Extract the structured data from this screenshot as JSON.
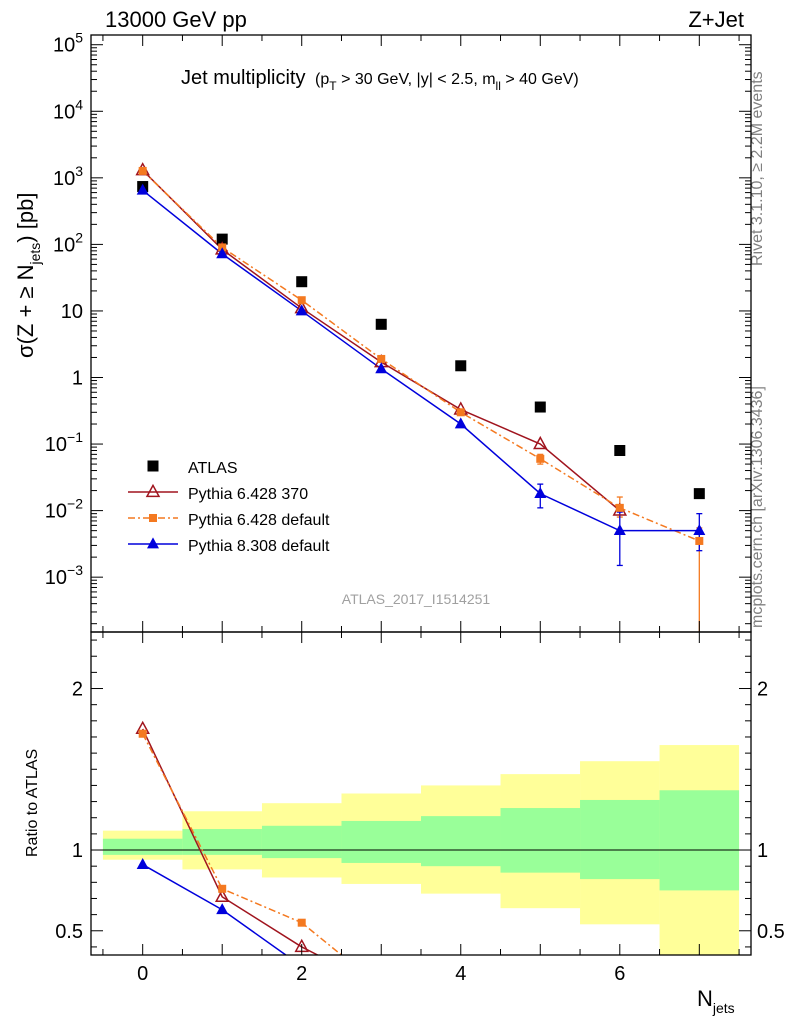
{
  "header": {
    "left": "13000 GeV pp",
    "right": "Z+Jet"
  },
  "side_labels": {
    "rivet": "Rivet 3.1.10, ≥ 2.2M events",
    "mcplots": "mcplots.cern.ch [arXiv:1306.3436]"
  },
  "chart_data": [
    {
      "type": "scatter",
      "title": "Jet multiplicity",
      "title_cuts": {
        "pt_p": "(p",
        "pt_sub": "T",
        "pt_rest": " > 30 GeV, |y| < 2.5, m",
        "m_sub": "ll",
        "m_rest": " > 40 GeV)"
      },
      "ylabel": {
        "a": "σ(Z + ≥ N",
        "sub": "jets",
        "b": ") [pb]"
      },
      "xlabel": {
        "main": "N",
        "sub": "jets"
      },
      "x_ticks": [
        "0",
        "2",
        "4",
        "6"
      ],
      "y_log": true,
      "xlim": [
        -0.65,
        7.65
      ],
      "ylim": [
        0.00015,
        140000
      ],
      "y_ticks": [
        {
          "v": 100000,
          "m": "10",
          "e": "5"
        },
        {
          "v": 10000,
          "m": "10",
          "e": "4"
        },
        {
          "v": 1000,
          "m": "10",
          "e": "3"
        },
        {
          "v": 100,
          "m": "10",
          "e": "2"
        },
        {
          "v": 10,
          "m": "10",
          "e": ""
        },
        {
          "v": 1,
          "m": "1",
          "e": ""
        },
        {
          "v": 0.1,
          "m": "10",
          "e": "−1"
        },
        {
          "v": 0.01,
          "m": "10",
          "e": "−2"
        },
        {
          "v": 0.001,
          "m": "10",
          "e": "−3"
        }
      ],
      "watermark": "ATLAS_2017_I1514251",
      "legend_position": "lower-left",
      "series": [
        {
          "name": "ATLAS",
          "color": "#000000",
          "marker": "square",
          "x": [
            0,
            1,
            2,
            3,
            4,
            5,
            6,
            7
          ],
          "y": [
            740,
            120,
            27.5,
            6.3,
            1.5,
            0.36,
            0.08,
            0.018
          ]
        },
        {
          "name": "Pythia 6.428 370",
          "color": "#a0141e",
          "marker": "open-triangle",
          "line": "solid",
          "x": [
            0,
            1,
            2,
            3,
            4,
            5,
            6
          ],
          "y": [
            1300,
            84,
            11,
            1.7,
            0.33,
            0.1,
            0.01
          ]
        },
        {
          "name": "Pythia 6.428 default",
          "color": "#f47920",
          "marker": "square",
          "line": "dashdot",
          "x": [
            0,
            1,
            2,
            3,
            4,
            5,
            6,
            7
          ],
          "y": [
            1270,
            90,
            14.5,
            1.9,
            0.3,
            0.06,
            0.011,
            0.0035
          ],
          "err_lo": [
            0,
            0,
            0,
            0,
            0,
            0.01,
            0.003,
            0.0034
          ],
          "err_hi": [
            0,
            0,
            0,
            0,
            0,
            0.01,
            0.005,
            0.002
          ]
        },
        {
          "name": "Pythia 8.308 default",
          "color": "#0000dc",
          "marker": "triangle",
          "line": "solid",
          "x": [
            0,
            1,
            2,
            3,
            4,
            5,
            6,
            7
          ],
          "y": [
            650,
            72,
            10,
            1.35,
            0.2,
            0.018,
            0.005,
            0.005
          ],
          "err_lo": [
            0,
            0,
            0,
            0,
            0,
            0.007,
            0.0035,
            0.0025
          ],
          "err_hi": [
            0,
            0,
            0,
            0,
            0,
            0.007,
            0.0045,
            0.004
          ]
        }
      ]
    },
    {
      "type": "line",
      "ylabel": "Ratio to ATLAS",
      "ylim": [
        0.35,
        2.35
      ],
      "y_ticks": [
        "0.5",
        "1",
        "2"
      ],
      "y_tick_values": [
        0.5,
        1,
        2
      ],
      "band_colors": {
        "outer": "#ffff99",
        "inner": "#99ff99"
      },
      "bands": [
        {
          "x0": -0.5,
          "x1": 0.5,
          "outer": [
            0.94,
            1.12
          ],
          "inner": [
            0.97,
            1.07
          ]
        },
        {
          "x0": 0.5,
          "x1": 1.5,
          "outer": [
            0.88,
            1.24
          ],
          "inner": [
            0.97,
            1.13
          ]
        },
        {
          "x0": 1.5,
          "x1": 2.5,
          "outer": [
            0.83,
            1.29
          ],
          "inner": [
            0.95,
            1.15
          ]
        },
        {
          "x0": 2.5,
          "x1": 3.5,
          "outer": [
            0.79,
            1.35
          ],
          "inner": [
            0.92,
            1.18
          ]
        },
        {
          "x0": 3.5,
          "x1": 4.5,
          "outer": [
            0.73,
            1.4
          ],
          "inner": [
            0.9,
            1.21
          ]
        },
        {
          "x0": 4.5,
          "x1": 5.5,
          "outer": [
            0.64,
            1.47
          ],
          "inner": [
            0.86,
            1.26
          ]
        },
        {
          "x0": 5.5,
          "x1": 6.5,
          "outer": [
            0.54,
            1.55
          ],
          "inner": [
            0.82,
            1.31
          ]
        },
        {
          "x0": 6.5,
          "x1": 7.5,
          "outer": [
            0.35,
            1.65
          ],
          "inner": [
            0.75,
            1.37
          ]
        }
      ],
      "series": [
        {
          "name": "Pythia 6.428 370",
          "x": [
            0,
            1,
            2,
            2.2
          ],
          "y": [
            1.75,
            0.71,
            0.4,
            0.35
          ]
        },
        {
          "name": "Pythia 6.428 default",
          "x": [
            0,
            1,
            2,
            2.5
          ],
          "y": [
            1.72,
            0.76,
            0.55,
            0.35
          ]
        },
        {
          "name": "Pythia 8.308 default",
          "x": [
            0,
            1,
            1.8
          ],
          "y": [
            0.91,
            0.63,
            0.35
          ]
        }
      ]
    }
  ]
}
